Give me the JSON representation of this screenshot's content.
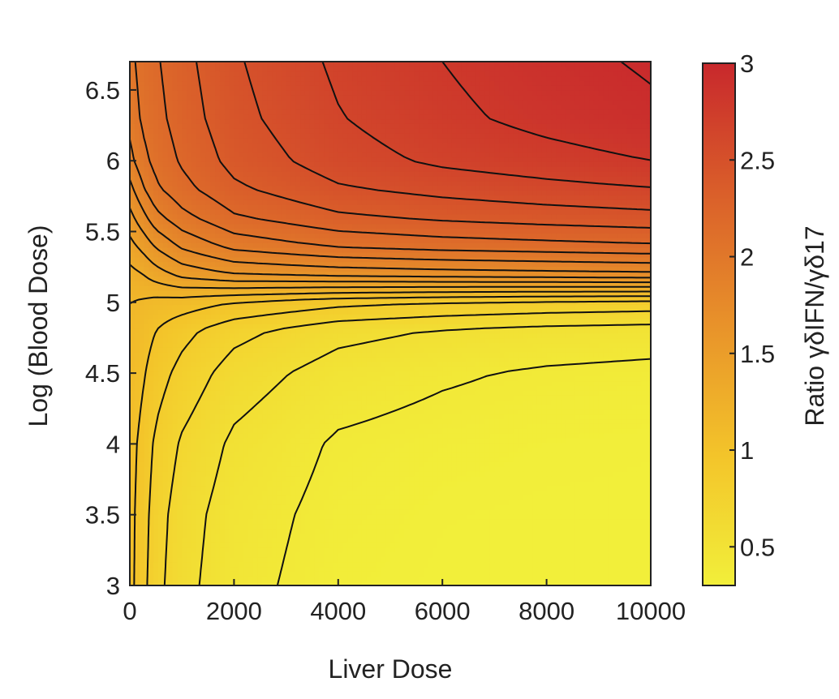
{
  "chart_data": {
    "type": "heatmap",
    "subtype": "filled-contour",
    "title": "",
    "xlabel": "Liver Dose",
    "ylabel": "Log (Blood Dose)",
    "xlim": [
      0,
      10000
    ],
    "ylim": [
      3,
      6.7
    ],
    "x_ticks": [
      "0",
      "2000",
      "4000",
      "6000",
      "8000",
      "10000"
    ],
    "y_ticks": [
      "3",
      "3.5",
      "4",
      "4.5",
      "5",
      "5.5",
      "6",
      "6.5"
    ],
    "x_tick_values": [
      0,
      2000,
      4000,
      6000,
      8000,
      10000
    ],
    "y_tick_values": [
      3,
      3.5,
      4,
      4.5,
      5,
      5.5,
      6,
      6.5
    ],
    "colorbar": {
      "label": "Ratio γδIFN/γδ17",
      "range": [
        0.3,
        3
      ],
      "ticks": [
        "0.5",
        "1",
        "1.5",
        "2",
        "2.5",
        "3"
      ],
      "tick_values": [
        0.5,
        1,
        1.5,
        2,
        2.5,
        3
      ],
      "colormap": [
        "#f2ef3a",
        "#f3c42a",
        "#e8922a",
        "#da5f2a",
        "#c8282c"
      ]
    },
    "grid": false,
    "grid_x": [
      0,
      250,
      500,
      1000,
      2000,
      4000,
      6000,
      8000,
      10000
    ],
    "grid_y": [
      3.0,
      3.5,
      4.0,
      4.5,
      4.8,
      5.0,
      5.2,
      5.4,
      5.6,
      5.8,
      6.0,
      6.3,
      6.7
    ],
    "z": [
      [
        1.05,
        0.9,
        0.75,
        0.6,
        0.45,
        0.33,
        0.3,
        0.3,
        0.3
      ],
      [
        1.05,
        0.92,
        0.77,
        0.62,
        0.47,
        0.35,
        0.31,
        0.3,
        0.3
      ],
      [
        1.06,
        0.95,
        0.82,
        0.68,
        0.52,
        0.38,
        0.34,
        0.32,
        0.31
      ],
      [
        1.1,
        1.02,
        0.92,
        0.8,
        0.63,
        0.48,
        0.42,
        0.38,
        0.36
      ],
      [
        1.12,
        1.07,
        1.0,
        0.9,
        0.75,
        0.6,
        0.54,
        0.5,
        0.48
      ],
      [
        1.15,
        1.13,
        1.1,
        1.08,
        1.0,
        0.9,
        0.85,
        0.82,
        0.8
      ],
      [
        1.25,
        1.3,
        1.38,
        1.5,
        1.6,
        1.65,
        1.68,
        1.7,
        1.72
      ],
      [
        1.4,
        1.5,
        1.62,
        1.78,
        1.95,
        2.07,
        2.12,
        2.15,
        2.18
      ],
      [
        1.55,
        1.7,
        1.85,
        2.0,
        2.18,
        2.32,
        2.38,
        2.42,
        2.45
      ],
      [
        1.7,
        1.88,
        2.02,
        2.15,
        2.32,
        2.48,
        2.55,
        2.6,
        2.64
      ],
      [
        1.85,
        2.0,
        2.1,
        2.22,
        2.4,
        2.58,
        2.68,
        2.74,
        2.8
      ],
      [
        1.95,
        2.08,
        2.15,
        2.27,
        2.45,
        2.64,
        2.76,
        2.85,
        2.92
      ],
      [
        2.0,
        2.12,
        2.18,
        2.3,
        2.48,
        2.68,
        2.8,
        2.9,
        2.97
      ]
    ],
    "contour_levels": [
      0.4,
      0.55,
      0.7,
      0.85,
      1.0,
      1.15,
      1.3,
      1.45,
      1.6,
      1.75,
      1.9,
      2.05,
      2.2,
      2.35,
      2.5,
      2.65,
      2.8,
      2.95
    ]
  }
}
